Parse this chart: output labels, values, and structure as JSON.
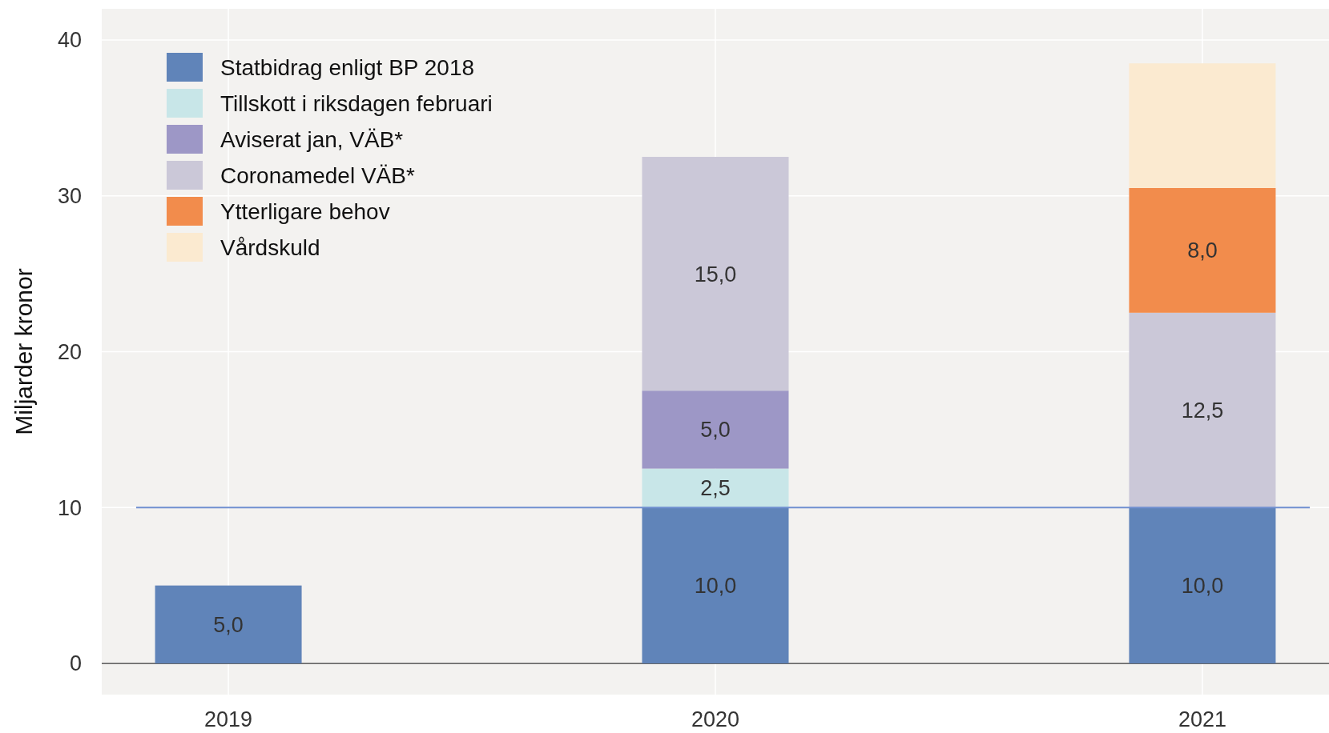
{
  "chart_data": {
    "type": "bar",
    "stacked": true,
    "ylabel": "Miljarder kronor",
    "categories": [
      "2019",
      "2020",
      "2021"
    ],
    "series": [
      {
        "name": "Statbidrag enligt BP 2018",
        "color": "#6084b9",
        "values": [
          5.0,
          10.0,
          10.0
        ],
        "value_labels": [
          "5,0",
          "10,0",
          "10,0"
        ]
      },
      {
        "name": "Tillskott i riksdagen februari",
        "color": "#c8e6e8",
        "values": [
          null,
          2.5,
          null
        ],
        "value_labels": [
          null,
          "2,5",
          null
        ]
      },
      {
        "name": "Aviserat jan, VÄB*",
        "color": "#9d97c6",
        "values": [
          null,
          5.0,
          null
        ],
        "value_labels": [
          null,
          "5,0",
          null
        ]
      },
      {
        "name": "Coronamedel VÄB*",
        "color": "#cbc8d8",
        "values": [
          null,
          15.0,
          12.5
        ],
        "value_labels": [
          null,
          "15,0",
          "12,5"
        ]
      },
      {
        "name": "Ytterligare behov",
        "color": "#f28c4c",
        "values": [
          null,
          null,
          8.0
        ],
        "value_labels": [
          null,
          null,
          "8,0"
        ]
      },
      {
        "name": "Vårdskuld",
        "color": "#fbead0",
        "values": [
          null,
          null,
          8.0
        ]
      }
    ],
    "ylim": [
      -2,
      42
    ],
    "yticks": [
      0,
      10,
      20,
      30,
      40
    ],
    "ref_lines": [
      {
        "axis": "y",
        "value": 10,
        "color": "#6f8fd0"
      }
    ],
    "grid": true,
    "legend": "top left"
  }
}
